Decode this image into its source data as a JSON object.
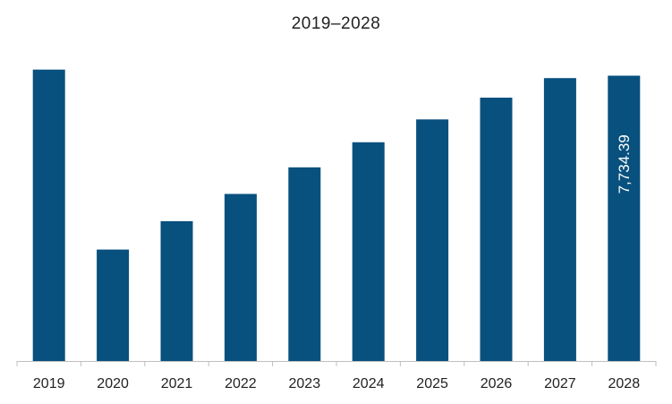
{
  "chart_data": {
    "type": "bar",
    "title": "2019–2028",
    "xlabel": "",
    "ylabel": "",
    "categories": [
      "2019",
      "2020",
      "2021",
      "2022",
      "2023",
      "2024",
      "2025",
      "2026",
      "2027",
      "2028"
    ],
    "values": [
      7900,
      3020,
      3790,
      4530,
      5250,
      5930,
      6550,
      7140,
      7670,
      7734.39
    ],
    "ylim": [
      0,
      8500
    ],
    "grid": false,
    "legend": "none",
    "bar_color": "#08507e",
    "data_labels": [
      {
        "category": "2028",
        "text": "7,734.39"
      }
    ]
  }
}
